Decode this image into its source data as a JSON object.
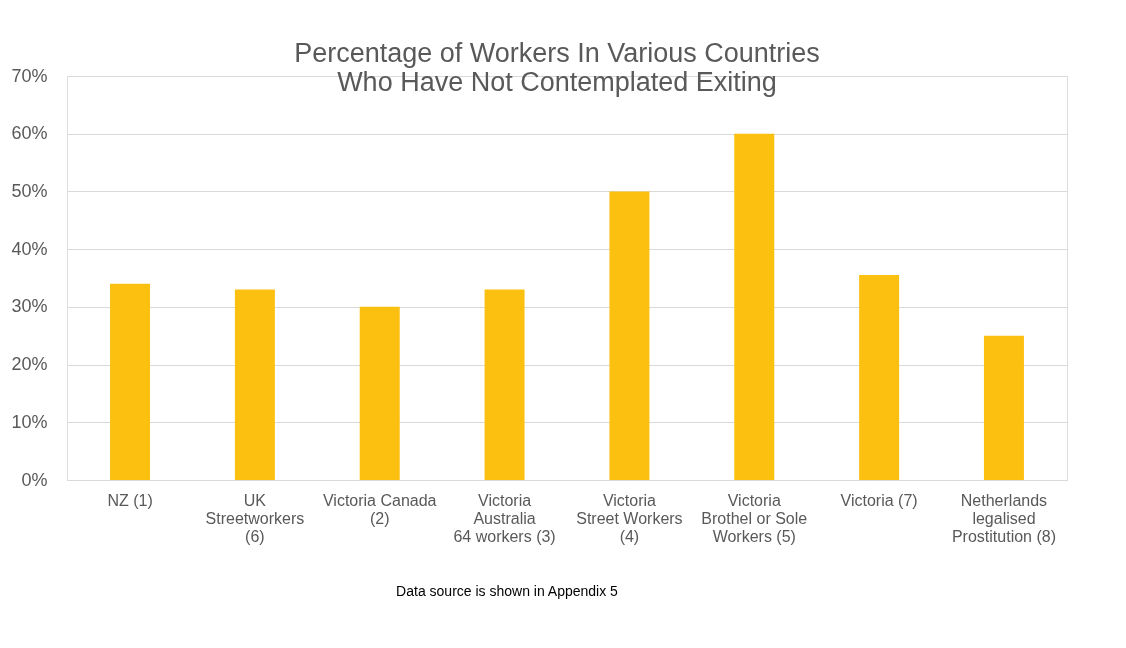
{
  "chart_data": {
    "type": "bar",
    "title": [
      "Percentage of Workers In Various Countries",
      "Who  Have  Not  Contemplated Exiting"
    ],
    "categories": [
      "NZ (1)",
      "UK\nStreetworkers\n(6)",
      "Victoria Canada\n(2)",
      "Victoria\nAustralia\n64 workers (3)",
      "Victoria\nStreet Workers\n(4)",
      "Victoria\nBrothel or Sole\nWorkers (5)",
      "Victoria (7)",
      "Netherlands\nlegalised\nProstitution (8)"
    ],
    "values": [
      34,
      33,
      30,
      33,
      50,
      60,
      35.5,
      25
    ],
    "color": "#fcc010",
    "ylim": [
      0,
      70
    ],
    "yticks": [
      {
        "value": 0,
        "label": "0%"
      },
      {
        "value": 10,
        "label": "10%"
      },
      {
        "value": 20,
        "label": "20%"
      },
      {
        "value": 30,
        "label": "30%"
      },
      {
        "value": 40,
        "label": "40%"
      },
      {
        "value": 50,
        "label": "50%"
      },
      {
        "value": 60,
        "label": "60%"
      },
      {
        "value": 70,
        "label": "70%"
      }
    ],
    "grid": "y",
    "annotations": [
      "Data source is shown in Appendix 5"
    ]
  }
}
